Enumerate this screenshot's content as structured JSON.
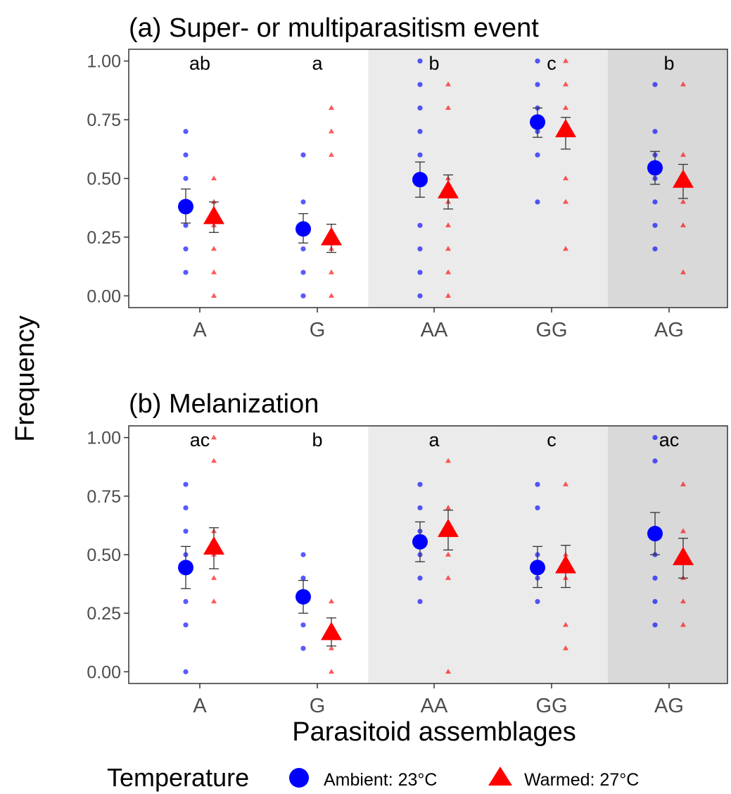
{
  "legend": {
    "title": "Temperature",
    "items": [
      {
        "label": "Ambient: 23°C",
        "shape": "circle",
        "color": "#0000FF"
      },
      {
        "label": "Warmed: 27°C",
        "shape": "triangle",
        "color": "#FF0000"
      }
    ]
  },
  "axis_titles": {
    "y": "Frequency",
    "x": "Parasitoid assemblages"
  },
  "chart_data": [
    {
      "type": "scatter",
      "title": "(a) Super- or multiparasitism event",
      "xlabel": "",
      "ylabel": "Frequency",
      "categories": [
        "A",
        "G",
        "AA",
        "GG",
        "AG"
      ],
      "ylim": [
        -0.05,
        1.05
      ],
      "yticks": [
        0.0,
        0.25,
        0.5,
        0.75,
        1.0
      ],
      "ytick_labels": [
        "0.00",
        "0.25",
        "0.50",
        "0.75",
        "1.00"
      ],
      "group_letters": [
        "ab",
        "a",
        "b",
        "c",
        "b"
      ],
      "background_shading": [
        "none",
        "none",
        "light",
        "light",
        "dark"
      ],
      "series": [
        {
          "name": "Ambient: 23°C",
          "shape": "circle",
          "color": "#0000FF",
          "means": [
            0.38,
            0.285,
            0.495,
            0.74,
            0.545
          ],
          "se_lower": [
            0.31,
            0.225,
            0.42,
            0.675,
            0.475
          ],
          "se_upper": [
            0.455,
            0.35,
            0.57,
            0.8,
            0.615
          ],
          "raw": [
            [
              0.1,
              0.2,
              0.3,
              0.4,
              0.5,
              0.6,
              0.7
            ],
            [
              0.0,
              0.1,
              0.2,
              0.3,
              0.4,
              0.6
            ],
            [
              0.0,
              0.1,
              0.2,
              0.3,
              0.5,
              0.6,
              0.7,
              0.8,
              0.9,
              1.0
            ],
            [
              0.4,
              0.6,
              0.7,
              0.8,
              0.9,
              1.0
            ],
            [
              0.2,
              0.3,
              0.4,
              0.5,
              0.6,
              0.7,
              0.9
            ]
          ]
        },
        {
          "name": "Warmed: 27°C",
          "shape": "triangle",
          "color": "#FF0000",
          "means": [
            0.335,
            0.245,
            0.445,
            0.705,
            0.49
          ],
          "se_lower": [
            0.27,
            0.185,
            0.37,
            0.625,
            0.415
          ],
          "se_upper": [
            0.4,
            0.305,
            0.515,
            0.76,
            0.56
          ],
          "raw": [
            [
              0.0,
              0.1,
              0.2,
              0.3,
              0.4,
              0.5
            ],
            [
              0.0,
              0.1,
              0.2,
              0.6,
              0.7,
              0.8
            ],
            [
              0.0,
              0.1,
              0.2,
              0.3,
              0.4,
              0.5,
              0.8,
              0.9
            ],
            [
              0.2,
              0.4,
              0.5,
              0.7,
              0.8,
              0.9,
              1.0
            ],
            [
              0.1,
              0.3,
              0.4,
              0.6,
              0.9
            ]
          ]
        }
      ]
    },
    {
      "type": "scatter",
      "title": "(b) Melanization",
      "xlabel": "Parasitoid assemblages",
      "ylabel": "Frequency",
      "categories": [
        "A",
        "G",
        "AA",
        "GG",
        "AG"
      ],
      "ylim": [
        -0.05,
        1.05
      ],
      "yticks": [
        0.0,
        0.25,
        0.5,
        0.75,
        1.0
      ],
      "ytick_labels": [
        "0.00",
        "0.25",
        "0.50",
        "0.75",
        "1.00"
      ],
      "group_letters": [
        "ac",
        "b",
        "a",
        "c",
        "ac"
      ],
      "background_shading": [
        "none",
        "none",
        "light",
        "light",
        "dark"
      ],
      "series": [
        {
          "name": "Ambient: 23°C",
          "shape": "circle",
          "color": "#0000FF",
          "means": [
            0.445,
            0.32,
            0.555,
            0.445,
            0.59
          ],
          "se_lower": [
            0.355,
            0.25,
            0.47,
            0.36,
            0.5
          ],
          "se_upper": [
            0.535,
            0.39,
            0.64,
            0.535,
            0.68
          ],
          "raw": [
            [
              0.0,
              0.2,
              0.3,
              0.5,
              0.6,
              0.7,
              0.8
            ],
            [
              0.1,
              0.2,
              0.3,
              0.4,
              0.5
            ],
            [
              0.3,
              0.4,
              0.5,
              0.6,
              0.7,
              0.8
            ],
            [
              0.3,
              0.4,
              0.5,
              0.7,
              0.8
            ],
            [
              0.2,
              0.3,
              0.4,
              0.5,
              0.6,
              0.9,
              1.0
            ]
          ]
        },
        {
          "name": "Warmed: 27°C",
          "shape": "triangle",
          "color": "#FF0000",
          "means": [
            0.53,
            0.165,
            0.605,
            0.45,
            0.485
          ],
          "se_lower": [
            0.44,
            0.11,
            0.52,
            0.36,
            0.4
          ],
          "se_upper": [
            0.615,
            0.23,
            0.69,
            0.54,
            0.57
          ],
          "raw": [
            [
              0.3,
              0.4,
              0.5,
              0.6,
              0.9,
              1.0
            ],
            [
              0.0,
              0.1,
              0.2,
              0.3
            ],
            [
              0.0,
              0.4,
              0.5,
              0.6,
              0.7,
              0.9
            ],
            [
              0.1,
              0.2,
              0.4,
              0.5,
              0.8
            ],
            [
              0.2,
              0.3,
              0.4,
              0.5,
              0.6,
              0.8
            ]
          ]
        }
      ]
    }
  ]
}
